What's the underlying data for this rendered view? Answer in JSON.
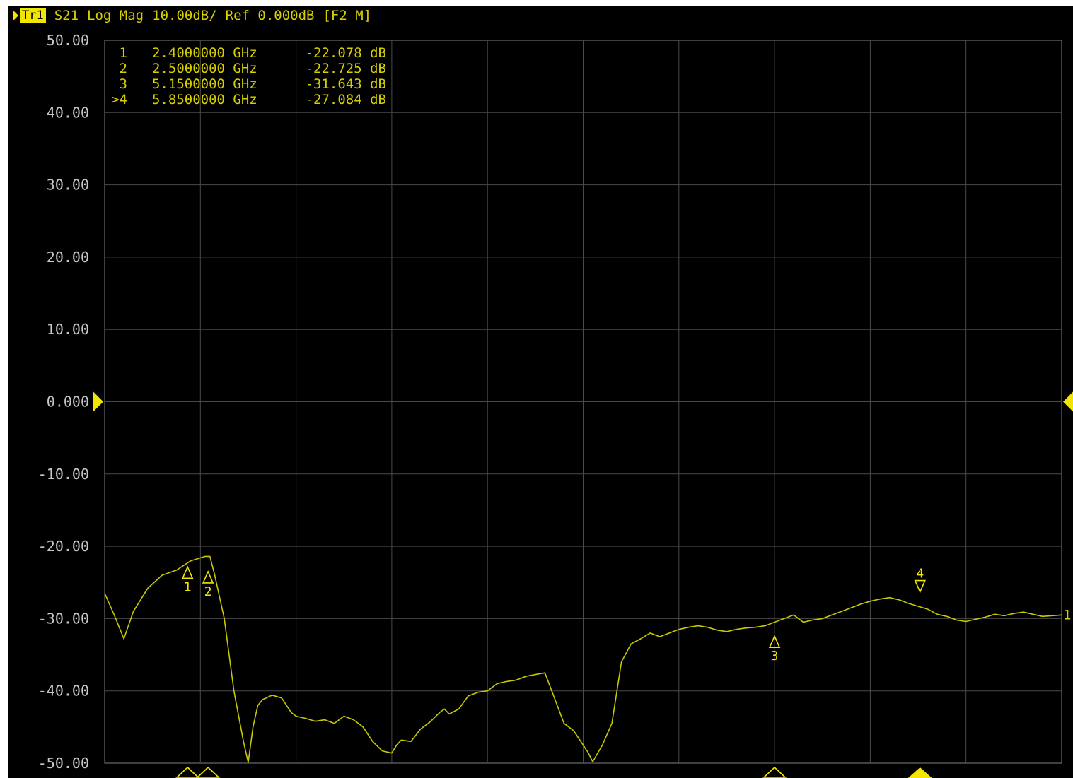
{
  "header": {
    "trace_label": "Tr1",
    "parameter": "S21",
    "format": "Log Mag",
    "scale": "10.00dB/",
    "reference": "Ref 0.000dB",
    "status": "[F2 M]"
  },
  "colors": {
    "background": "#000000",
    "trace": "#c8c800",
    "text": "#d6d000",
    "grid": "#4a4a4a",
    "marker_active": "#f2e600"
  },
  "marker_table": [
    {
      "id": "1",
      "freq": "2.4000000 GHz",
      "value": "-22.078 dB"
    },
    {
      "id": "2",
      "freq": "2.5000000 GHz",
      "value": "-22.725 dB"
    },
    {
      "id": "3",
      "freq": "5.1500000 GHz",
      "value": "-31.643 dB"
    },
    {
      "id": ">4",
      "freq": "5.8500000 GHz",
      "value": "-27.084 dB"
    }
  ],
  "chart_data": {
    "type": "line",
    "title": "",
    "xlabel": "",
    "ylabel": "",
    "xlim": [
      0,
      10
    ],
    "ylim": [
      -50,
      50
    ],
    "y_ticks": [
      "50.00",
      "40.00",
      "30.00",
      "20.00",
      "10.00",
      "0.000",
      "-10.00",
      "-20.00",
      "-30.00",
      "-40.00",
      "-50.00"
    ],
    "grid": true,
    "reference_level": 0,
    "trace_end_label": "1",
    "series": [
      {
        "x": [
          0,
          0.1,
          0.2,
          0.3,
          0.45,
          0.6,
          0.75,
          0.9,
          1.0,
          1.05,
          1.1,
          1.15,
          1.25,
          1.35,
          1.45,
          1.5,
          1.55,
          1.6,
          1.65,
          1.75,
          1.85,
          1.95,
          2.0,
          2.1,
          2.2,
          2.3,
          2.4,
          2.5,
          2.6,
          2.7,
          2.8,
          2.9,
          3.0,
          3.05,
          3.1,
          3.2,
          3.3,
          3.4,
          3.5,
          3.55,
          3.6,
          3.7,
          3.8,
          3.9,
          4.0,
          4.1,
          4.2,
          4.3,
          4.4,
          4.6,
          4.8,
          4.9,
          5.0,
          5.05,
          5.1,
          5.2,
          5.3,
          5.4,
          5.5,
          5.6,
          5.7,
          5.8,
          5.9,
          6.0,
          6.1,
          6.2,
          6.3,
          6.4,
          6.5,
          6.6,
          6.7,
          6.8,
          6.9,
          7.0,
          7.1,
          7.2,
          7.3,
          7.4,
          7.5,
          7.6,
          7.7,
          7.8,
          7.9,
          8.0,
          8.1,
          8.2,
          8.3,
          8.4,
          8.5,
          8.6,
          8.7,
          8.8,
          8.9,
          9.0,
          9.1,
          9.2,
          9.3,
          9.4,
          9.5,
          9.6,
          9.7,
          9.8,
          9.9,
          10.0
        ],
        "y": [
          -26.5,
          -29.5,
          -32.8,
          -29.0,
          -25.8,
          -24.0,
          -23.3,
          -22.0,
          -21.6,
          -21.4,
          -21.4,
          -24.0,
          -30.0,
          -40.0,
          -47.0,
          -49.9,
          -45.0,
          -42.0,
          -41.2,
          -40.6,
          -41.0,
          -43.0,
          -43.5,
          -43.8,
          -44.2,
          -44.0,
          -44.5,
          -43.5,
          -44.0,
          -45.0,
          -47.0,
          -48.3,
          -48.6,
          -47.5,
          -46.8,
          -47.0,
          -45.3,
          -44.3,
          -43.0,
          -42.5,
          -43.2,
          -42.5,
          -40.7,
          -40.2,
          -40.0,
          -39.0,
          -38.7,
          -38.5,
          -38.0,
          -37.5,
          -44.5,
          -45.5,
          -47.5,
          -48.5,
          -49.8,
          -47.5,
          -44.5,
          -36.0,
          -33.5,
          -32.8,
          -32.0,
          -32.5,
          -32.0,
          -31.5,
          -31.2,
          -31.0,
          -31.2,
          -31.6,
          -31.8,
          -31.5,
          -31.3,
          -31.2,
          -31.0,
          -30.5,
          -30.0,
          -29.5,
          -30.5,
          -30.2,
          -30.0,
          -29.5,
          -29.0,
          -28.5,
          -28.0,
          -27.6,
          -27.3,
          -27.1,
          -27.4,
          -27.9,
          -28.3,
          -28.7,
          -29.4,
          -29.7,
          -30.2,
          -30.4,
          -30.1,
          -29.8,
          -29.4,
          -29.6,
          -29.3,
          -29.1,
          -29.4,
          -29.7,
          -29.6,
          -29.5
        ]
      }
    ],
    "markers": [
      {
        "label": "1",
        "x": 0.866,
        "y": -22.078,
        "direction": "up",
        "active": false
      },
      {
        "label": "2",
        "x": 1.08,
        "y": -22.725,
        "direction": "up",
        "active": false
      },
      {
        "label": "3",
        "x": 7.0,
        "y": -31.643,
        "direction": "up",
        "active": false
      },
      {
        "label": "4",
        "x": 8.52,
        "y": -27.084,
        "direction": "down",
        "active": true
      }
    ]
  }
}
